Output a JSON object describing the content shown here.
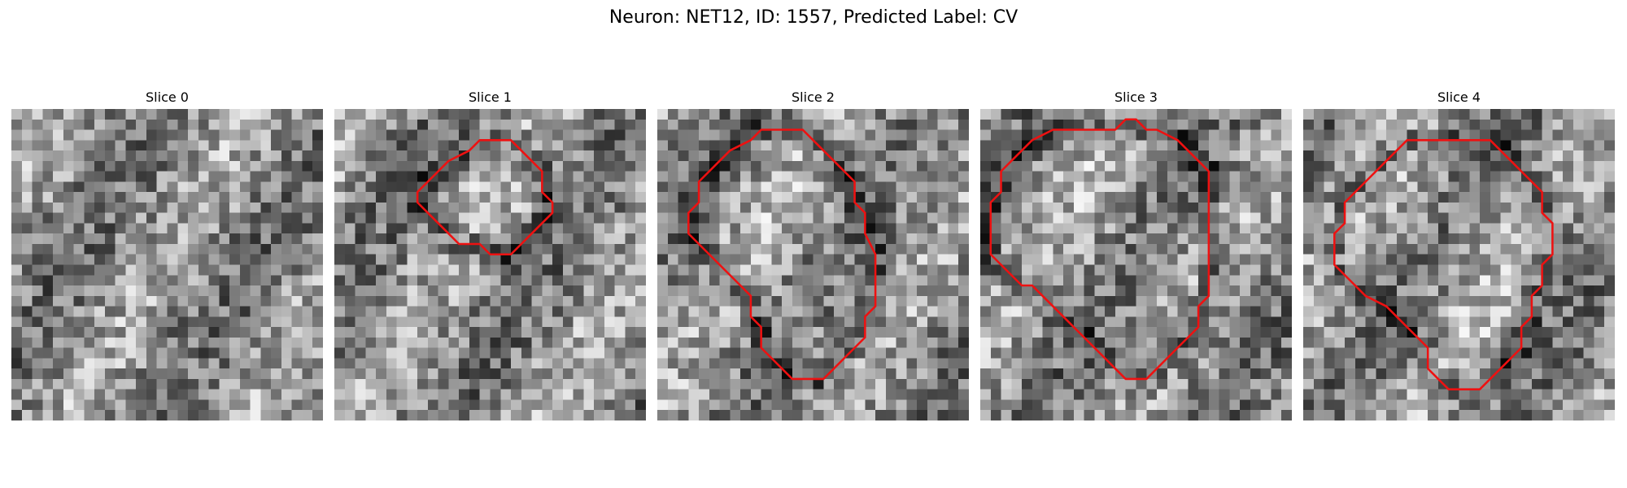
{
  "figure": {
    "title": "Neuron: NET12, ID: 1557, Predicted Label: CV"
  },
  "slices": [
    {
      "title": "Slice 0",
      "has_contour": false,
      "contour": []
    },
    {
      "title": "Slice 1",
      "has_contour": true,
      "contour": [
        [
          16,
          3
        ],
        [
          14,
          3
        ],
        [
          13,
          4
        ],
        [
          11,
          5
        ],
        [
          10,
          6
        ],
        [
          9,
          7
        ],
        [
          8,
          8
        ],
        [
          8,
          9
        ],
        [
          9,
          10
        ],
        [
          10,
          11
        ],
        [
          11,
          12
        ],
        [
          12,
          13
        ],
        [
          14,
          13
        ],
        [
          15,
          14
        ],
        [
          17,
          14
        ],
        [
          18,
          13
        ],
        [
          19,
          12
        ],
        [
          20,
          11
        ],
        [
          21,
          10
        ],
        [
          21,
          9
        ],
        [
          20,
          8
        ],
        [
          20,
          6
        ],
        [
          19,
          5
        ],
        [
          18,
          4
        ],
        [
          17,
          3
        ]
      ]
    },
    {
      "title": "Slice 2",
      "has_contour": true,
      "contour": [
        [
          14,
          2
        ],
        [
          10,
          2
        ],
        [
          9,
          3
        ],
        [
          7,
          4
        ],
        [
          6,
          5
        ],
        [
          5,
          6
        ],
        [
          4,
          7
        ],
        [
          4,
          9
        ],
        [
          3,
          10
        ],
        [
          3,
          12
        ],
        [
          4,
          13
        ],
        [
          5,
          14
        ],
        [
          6,
          15
        ],
        [
          7,
          16
        ],
        [
          8,
          17
        ],
        [
          9,
          18
        ],
        [
          9,
          20
        ],
        [
          10,
          21
        ],
        [
          10,
          23
        ],
        [
          11,
          24
        ],
        [
          12,
          25
        ],
        [
          13,
          26
        ],
        [
          16,
          26
        ],
        [
          17,
          25
        ],
        [
          18,
          24
        ],
        [
          19,
          23
        ],
        [
          20,
          22
        ],
        [
          20,
          20
        ],
        [
          21,
          19
        ],
        [
          21,
          14
        ],
        [
          20,
          12
        ],
        [
          20,
          10
        ],
        [
          19,
          9
        ],
        [
          19,
          7
        ],
        [
          18,
          6
        ],
        [
          17,
          5
        ],
        [
          16,
          4
        ],
        [
          15,
          3
        ]
      ]
    },
    {
      "title": "Slice 3",
      "has_contour": true,
      "contour": [
        [
          10,
          2
        ],
        [
          7,
          2
        ],
        [
          5,
          3
        ],
        [
          4,
          4
        ],
        [
          3,
          5
        ],
        [
          2,
          6
        ],
        [
          2,
          8
        ],
        [
          1,
          9
        ],
        [
          1,
          14
        ],
        [
          2,
          15
        ],
        [
          3,
          16
        ],
        [
          4,
          17
        ],
        [
          5,
          17
        ],
        [
          6,
          18
        ],
        [
          7,
          19
        ],
        [
          8,
          20
        ],
        [
          9,
          21
        ],
        [
          10,
          22
        ],
        [
          11,
          23
        ],
        [
          12,
          24
        ],
        [
          13,
          25
        ],
        [
          14,
          26
        ],
        [
          16,
          26
        ],
        [
          17,
          25
        ],
        [
          18,
          24
        ],
        [
          19,
          23
        ],
        [
          20,
          22
        ],
        [
          21,
          21
        ],
        [
          21,
          19
        ],
        [
          22,
          18
        ],
        [
          22,
          6
        ],
        [
          21,
          5
        ],
        [
          20,
          4
        ],
        [
          19,
          3
        ],
        [
          17,
          2
        ],
        [
          16,
          2
        ],
        [
          15,
          1
        ],
        [
          14,
          1
        ],
        [
          13,
          2
        ]
      ]
    },
    {
      "title": "Slice 4",
      "has_contour": true,
      "contour": [
        [
          15,
          3
        ],
        [
          10,
          3
        ],
        [
          9,
          4
        ],
        [
          8,
          5
        ],
        [
          7,
          6
        ],
        [
          6,
          7
        ],
        [
          5,
          8
        ],
        [
          4,
          9
        ],
        [
          4,
          11
        ],
        [
          3,
          12
        ],
        [
          3,
          15
        ],
        [
          4,
          16
        ],
        [
          5,
          17
        ],
        [
          6,
          18
        ],
        [
          8,
          19
        ],
        [
          9,
          20
        ],
        [
          10,
          21
        ],
        [
          11,
          22
        ],
        [
          12,
          23
        ],
        [
          12,
          25
        ],
        [
          13,
          26
        ],
        [
          14,
          27
        ],
        [
          17,
          27
        ],
        [
          18,
          26
        ],
        [
          19,
          25
        ],
        [
          20,
          24
        ],
        [
          21,
          23
        ],
        [
          21,
          21
        ],
        [
          22,
          20
        ],
        [
          22,
          18
        ],
        [
          23,
          17
        ],
        [
          23,
          15
        ],
        [
          24,
          14
        ],
        [
          24,
          11
        ],
        [
          23,
          10
        ],
        [
          23,
          8
        ],
        [
          22,
          7
        ],
        [
          21,
          6
        ],
        [
          20,
          5
        ],
        [
          19,
          4
        ],
        [
          18,
          3
        ]
      ]
    }
  ]
}
